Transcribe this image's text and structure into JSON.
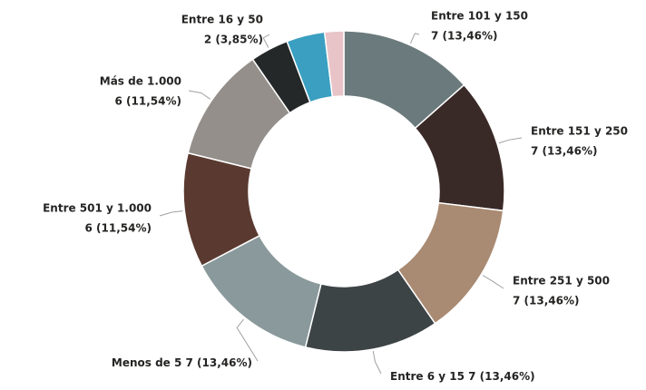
{
  "chart_data": {
    "type": "pie",
    "categories": [
      "Entre 101 y 150",
      "Entre 151 y 250",
      "Entre 251 y 500",
      "Entre 6 y 15",
      "Menos de 5",
      "Entre 501 y 1.000",
      "Más de 1.000",
      "Entre 16 y 50",
      null,
      null
    ],
    "values": [
      7,
      7,
      7,
      7,
      7,
      6,
      6,
      2,
      2,
      1
    ],
    "value_labels": [
      "7 (13,46%)",
      "7 (13,46%)",
      "7 (13,46%)",
      "7 (13,46%)",
      "7 (13,46%)",
      "6 (11,54%)",
      "6 (11,54%)",
      "2 (3,85%)",
      null,
      null
    ],
    "colors": [
      "#6b7a7c",
      "#3a2a27",
      "#a98a72",
      "#3d4446",
      "#8a999b",
      "#5a3a30",
      "#948f8a",
      "#252829",
      "#3a9fc0",
      "#e8c4c8"
    ]
  }
}
